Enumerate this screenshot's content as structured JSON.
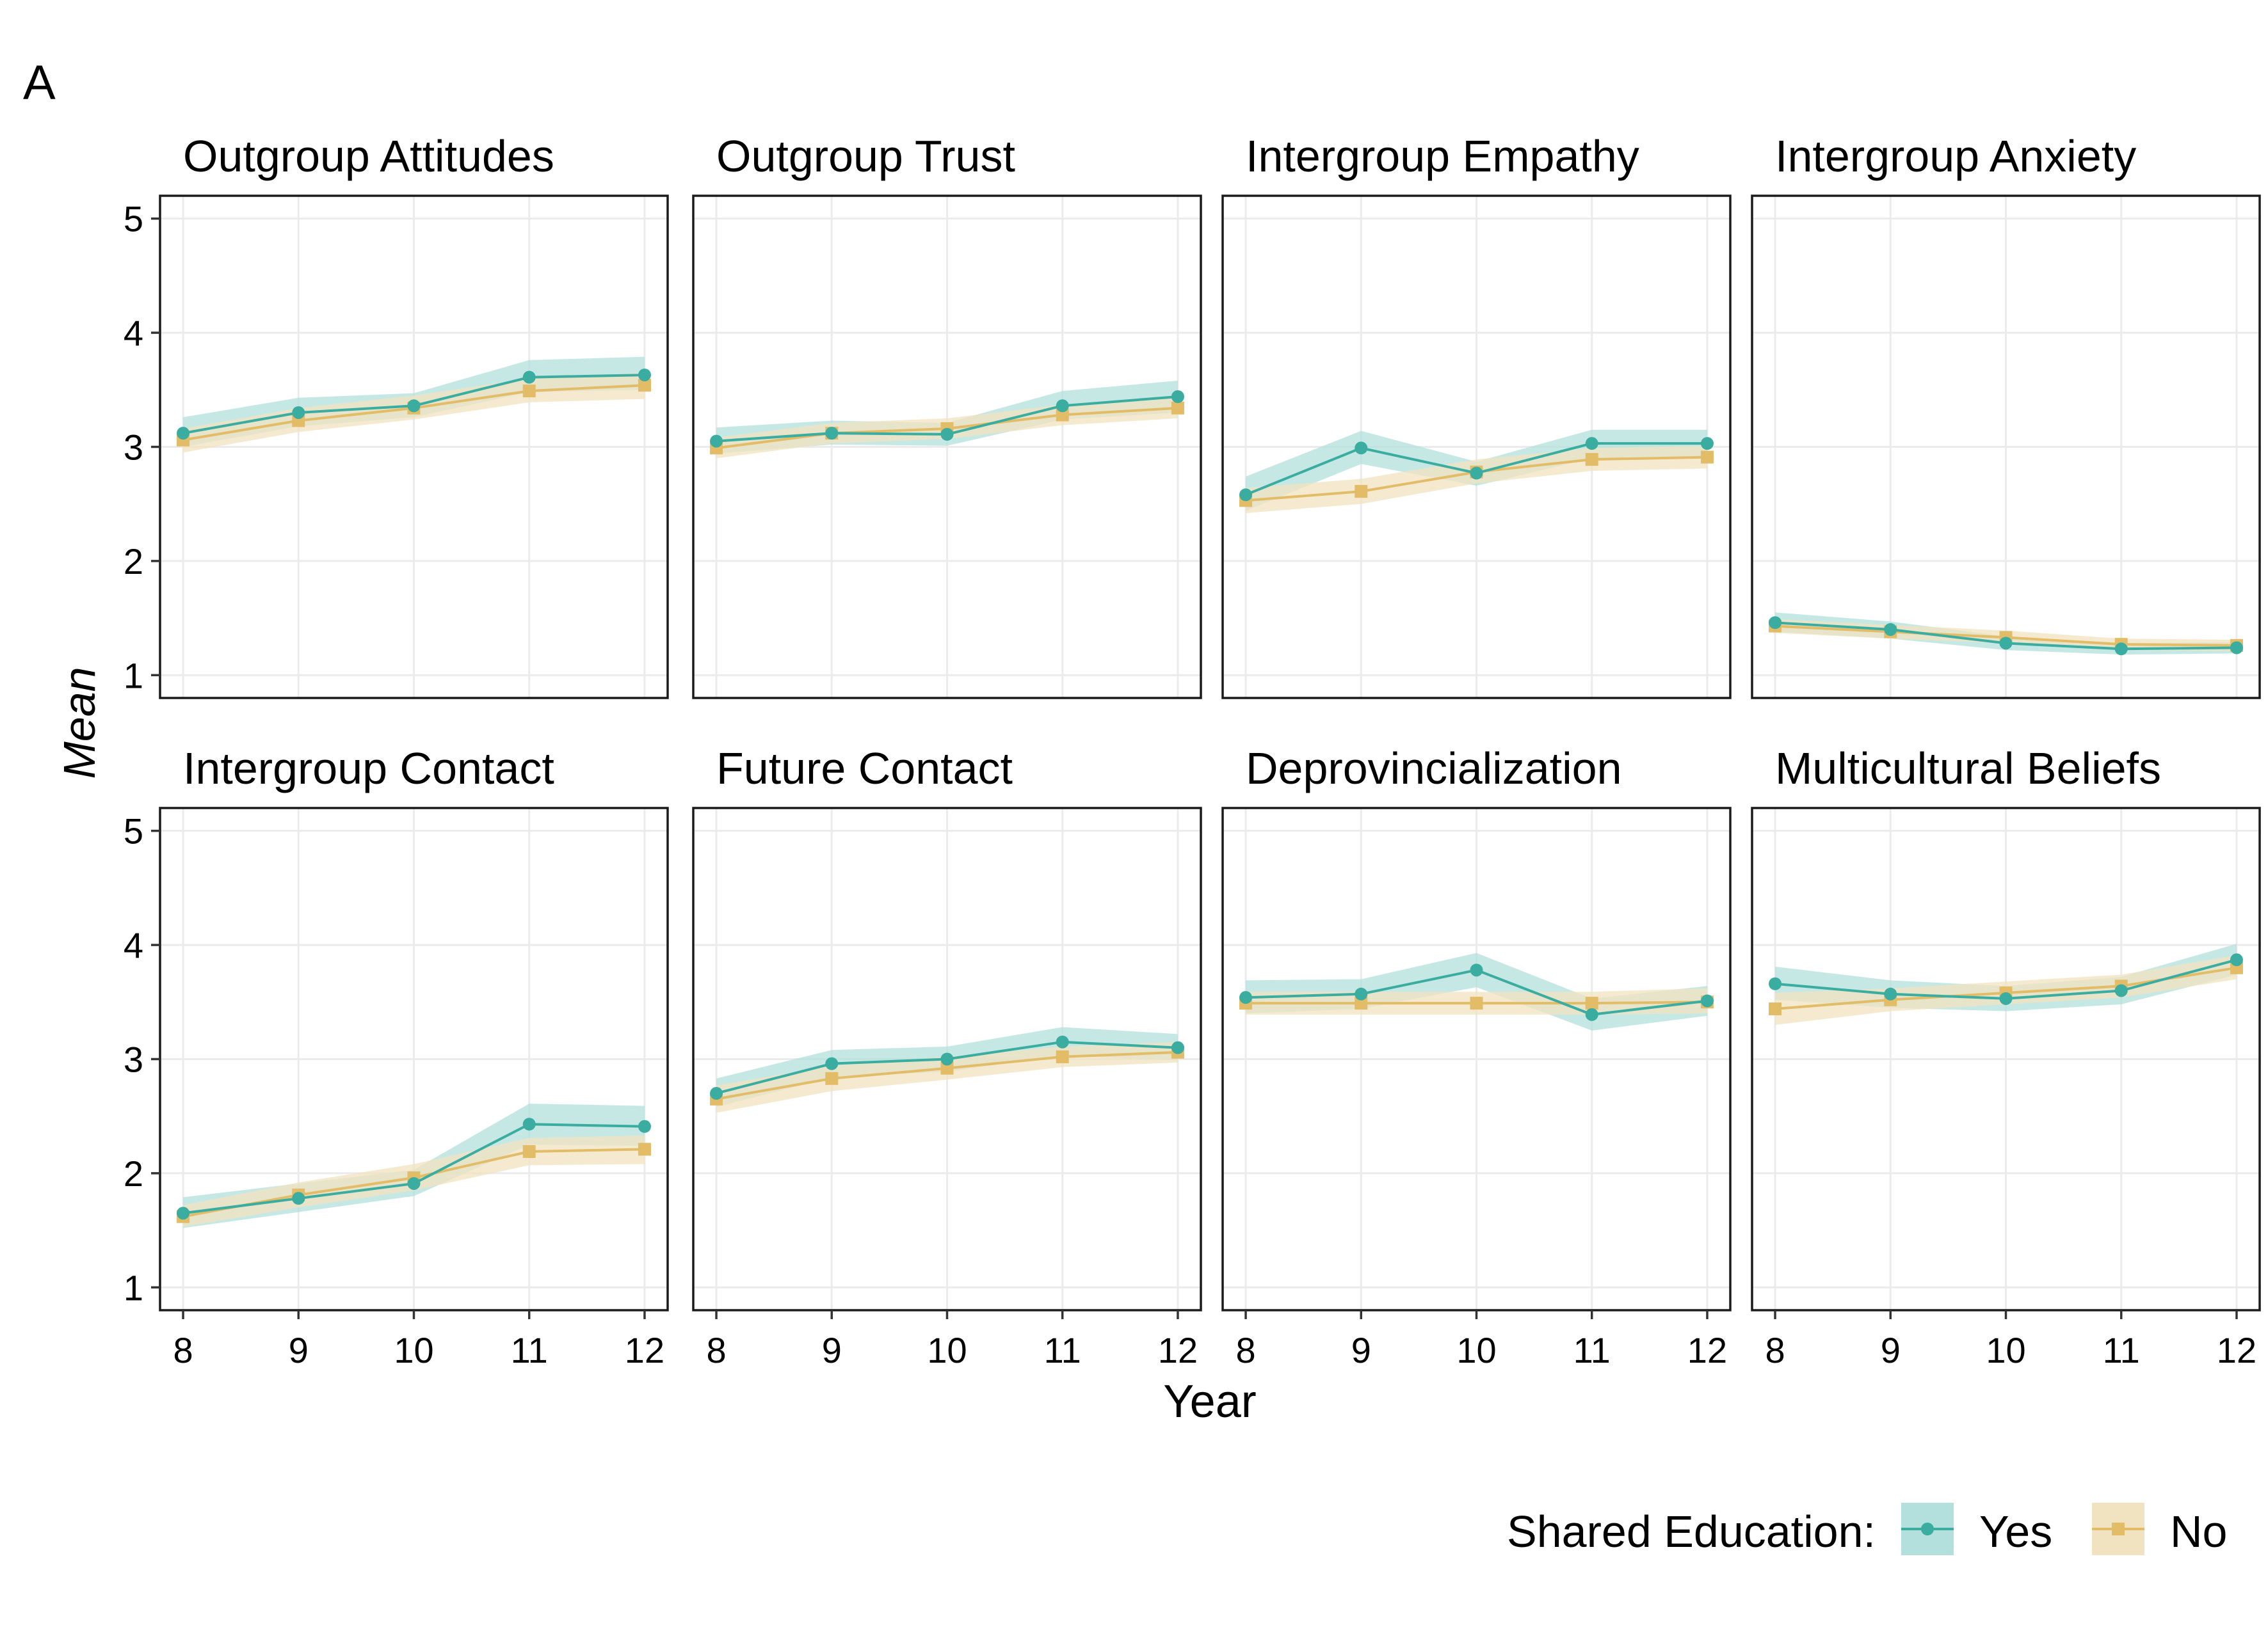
{
  "panel_tag": "A",
  "axes": {
    "xlabel": "Year",
    "ylabel": "Mean"
  },
  "legend": {
    "title": "Shared Education:",
    "items": [
      "Yes",
      "No"
    ]
  },
  "colors": {
    "yes": "#3aada0",
    "no": "#e3bc68",
    "yes_band": "#b3e0dc",
    "no_band": "#f2e3c0",
    "grid": "#ebebeb",
    "frame": "#1a1a1a"
  },
  "chart_data": [
    {
      "type": "line",
      "title": "Outgroup Attitudes",
      "x": [
        8,
        9,
        10,
        11,
        12
      ],
      "xlim": [
        8,
        12
      ],
      "ylim": [
        1,
        5
      ],
      "legend_position": "bottom-right",
      "series": [
        {
          "name": "Yes",
          "values": [
            3.12,
            3.3,
            3.36,
            3.61,
            3.63
          ],
          "lower": [
            3.0,
            3.18,
            3.26,
            3.48,
            3.5
          ],
          "upper": [
            3.26,
            3.43,
            3.47,
            3.76,
            3.79
          ]
        },
        {
          "name": "No",
          "values": [
            3.06,
            3.23,
            3.34,
            3.49,
            3.54
          ],
          "lower": [
            2.95,
            3.13,
            3.24,
            3.39,
            3.42
          ],
          "upper": [
            3.16,
            3.34,
            3.45,
            3.6,
            3.65
          ]
        }
      ]
    },
    {
      "type": "line",
      "title": "Outgroup Trust",
      "x": [
        8,
        9,
        10,
        11,
        12
      ],
      "xlim": [
        8,
        12
      ],
      "ylim": [
        1,
        5
      ],
      "legend_position": "bottom-right",
      "series": [
        {
          "name": "Yes",
          "values": [
            3.05,
            3.12,
            3.11,
            3.36,
            3.44
          ],
          "lower": [
            2.94,
            3.02,
            3.01,
            3.24,
            3.3
          ],
          "upper": [
            3.17,
            3.23,
            3.21,
            3.49,
            3.58
          ]
        },
        {
          "name": "No",
          "values": [
            2.99,
            3.12,
            3.16,
            3.28,
            3.34
          ],
          "lower": [
            2.9,
            3.03,
            3.07,
            3.19,
            3.25
          ],
          "upper": [
            3.08,
            3.21,
            3.25,
            3.37,
            3.43
          ]
        }
      ]
    },
    {
      "type": "line",
      "title": "Intergroup Empathy",
      "x": [
        8,
        9,
        10,
        11,
        12
      ],
      "xlim": [
        8,
        12
      ],
      "ylim": [
        1,
        5
      ],
      "legend_position": "bottom-right",
      "series": [
        {
          "name": "Yes",
          "values": [
            2.58,
            2.99,
            2.77,
            3.03,
            3.03
          ],
          "lower": [
            2.44,
            2.85,
            2.66,
            2.9,
            2.9
          ],
          "upper": [
            2.74,
            3.14,
            2.87,
            3.15,
            3.15
          ]
        },
        {
          "name": "No",
          "values": [
            2.53,
            2.61,
            2.78,
            2.89,
            2.91
          ],
          "lower": [
            2.42,
            2.5,
            2.68,
            2.79,
            2.81
          ],
          "upper": [
            2.64,
            2.72,
            2.89,
            2.99,
            3.01
          ]
        }
      ]
    },
    {
      "type": "line",
      "title": "Intergroup Anxiety",
      "x": [
        8,
        9,
        10,
        11,
        12
      ],
      "xlim": [
        8,
        12
      ],
      "ylim": [
        1,
        5
      ],
      "legend_position": "bottom-right",
      "series": [
        {
          "name": "Yes",
          "values": [
            1.46,
            1.4,
            1.28,
            1.23,
            1.24
          ],
          "lower": [
            1.38,
            1.32,
            1.22,
            1.18,
            1.19
          ],
          "upper": [
            1.55,
            1.47,
            1.34,
            1.28,
            1.29
          ]
        },
        {
          "name": "No",
          "values": [
            1.43,
            1.38,
            1.33,
            1.27,
            1.26
          ],
          "lower": [
            1.37,
            1.32,
            1.28,
            1.22,
            1.21
          ],
          "upper": [
            1.49,
            1.44,
            1.39,
            1.32,
            1.31
          ]
        }
      ]
    },
    {
      "type": "line",
      "title": "Intergroup Contact",
      "x": [
        8,
        9,
        10,
        11,
        12
      ],
      "xlim": [
        8,
        12
      ],
      "ylim": [
        1,
        5
      ],
      "legend_position": "bottom-right",
      "series": [
        {
          "name": "Yes",
          "values": [
            1.65,
            1.78,
            1.91,
            2.43,
            2.41
          ],
          "lower": [
            1.52,
            1.66,
            1.8,
            2.25,
            2.24
          ],
          "upper": [
            1.79,
            1.91,
            2.03,
            2.61,
            2.59
          ]
        },
        {
          "name": "No",
          "values": [
            1.62,
            1.81,
            1.96,
            2.19,
            2.21
          ],
          "lower": [
            1.53,
            1.7,
            1.85,
            2.07,
            2.08
          ],
          "upper": [
            1.72,
            1.92,
            2.08,
            2.31,
            2.33
          ]
        }
      ]
    },
    {
      "type": "line",
      "title": "Future Contact",
      "x": [
        8,
        9,
        10,
        11,
        12
      ],
      "xlim": [
        8,
        12
      ],
      "ylim": [
        1,
        5
      ],
      "legend_position": "bottom-right",
      "series": [
        {
          "name": "Yes",
          "values": [
            2.7,
            2.96,
            3.0,
            3.15,
            3.1
          ],
          "lower": [
            2.58,
            2.84,
            2.89,
            3.03,
            2.99
          ],
          "upper": [
            2.83,
            3.08,
            3.11,
            3.28,
            3.22
          ]
        },
        {
          "name": "No",
          "values": [
            2.65,
            2.83,
            2.92,
            3.02,
            3.06
          ],
          "lower": [
            2.53,
            2.72,
            2.82,
            2.93,
            2.97
          ],
          "upper": [
            2.77,
            2.94,
            3.02,
            3.11,
            3.15
          ]
        }
      ]
    },
    {
      "type": "line",
      "title": "Deprovincialization",
      "x": [
        8,
        9,
        10,
        11,
        12
      ],
      "xlim": [
        8,
        12
      ],
      "ylim": [
        1,
        5
      ],
      "legend_position": "bottom-right",
      "series": [
        {
          "name": "Yes",
          "values": [
            3.54,
            3.57,
            3.78,
            3.39,
            3.51
          ],
          "lower": [
            3.4,
            3.44,
            3.63,
            3.25,
            3.38
          ],
          "upper": [
            3.69,
            3.7,
            3.93,
            3.53,
            3.64
          ]
        },
        {
          "name": "No",
          "values": [
            3.49,
            3.49,
            3.49,
            3.49,
            3.5
          ],
          "lower": [
            3.39,
            3.39,
            3.39,
            3.39,
            3.4
          ],
          "upper": [
            3.59,
            3.59,
            3.59,
            3.59,
            3.62
          ]
        }
      ]
    },
    {
      "type": "line",
      "title": "Multicultural Beliefs",
      "x": [
        8,
        9,
        10,
        11,
        12
      ],
      "xlim": [
        8,
        12
      ],
      "ylim": [
        1,
        5
      ],
      "legend_position": "bottom-right",
      "series": [
        {
          "name": "Yes",
          "values": [
            3.66,
            3.57,
            3.53,
            3.6,
            3.87
          ],
          "lower": [
            3.52,
            3.45,
            3.42,
            3.48,
            3.74
          ],
          "upper": [
            3.81,
            3.69,
            3.64,
            3.72,
            4.01
          ]
        },
        {
          "name": "No",
          "values": [
            3.44,
            3.52,
            3.58,
            3.64,
            3.8
          ],
          "lower": [
            3.3,
            3.42,
            3.48,
            3.54,
            3.7
          ],
          "upper": [
            3.58,
            3.62,
            3.68,
            3.74,
            3.91
          ]
        }
      ]
    }
  ]
}
